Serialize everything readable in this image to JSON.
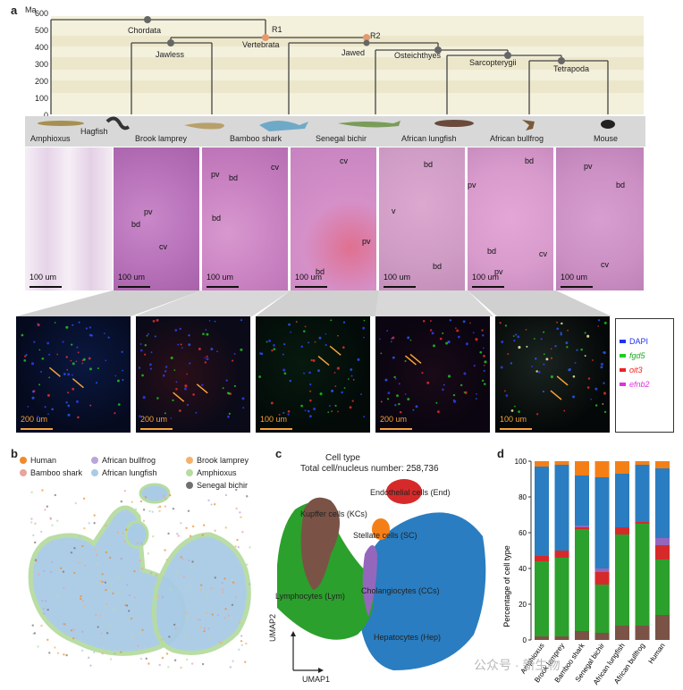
{
  "panel_a": {
    "letter": "a",
    "axis_unit": "Ma",
    "ticks": [
      "600",
      "500",
      "400",
      "300",
      "200",
      "100",
      "0"
    ],
    "tree_nodes": [
      {
        "label": "Chordata"
      },
      {
        "label": "Jawless"
      },
      {
        "label": "Vertebrata"
      },
      {
        "label": "R1"
      },
      {
        "label": "R2"
      },
      {
        "label": "Jawed"
      },
      {
        "label": "Osteichthyes"
      },
      {
        "label": "Sarcopterygii"
      },
      {
        "label": "Tetrapoda"
      }
    ],
    "species": [
      "Amphioxus",
      "Hagfish",
      "Brook lamprey",
      "Bamboo shark",
      "Senegal bichir",
      "African lungfish",
      "African bullfrog",
      "Mouse"
    ],
    "histology": [
      {
        "species": "Amphioxus",
        "labels": [],
        "scale": "100 um"
      },
      {
        "species": "Brook lamprey",
        "labels": [
          "pv",
          "bd",
          "cv"
        ],
        "scale": "100 um"
      },
      {
        "species": "Bamboo shark",
        "labels": [
          "pv",
          "bd",
          "cv",
          "bd"
        ],
        "scale": "100 um"
      },
      {
        "species": "Senegal bichir",
        "labels": [
          "cv",
          "pv",
          "bd"
        ],
        "scale": "100 um"
      },
      {
        "species": "African lungfish",
        "labels": [
          "bd",
          "v",
          "bd"
        ],
        "scale": "100 um"
      },
      {
        "species": "African bullfrog",
        "labels": [
          "bd",
          "pv",
          "bd",
          "pv",
          "cv"
        ],
        "scale": "100 um"
      },
      {
        "species": "Mouse",
        "labels": [
          "pv",
          "bd",
          "cv"
        ],
        "scale": "100 um"
      }
    ],
    "fluorescence_scales": [
      "200 um",
      "200 um",
      "100 um",
      "200 um",
      "100 um"
    ],
    "legend": [
      {
        "label": "DAPI",
        "color": "#2233ee"
      },
      {
        "label": "fgd5",
        "color": "#22cc22"
      },
      {
        "label": "oit3",
        "color": "#ee2222"
      },
      {
        "label": "efnb2",
        "color": "#dd33dd"
      }
    ]
  },
  "panel_b": {
    "letter": "b",
    "legend": [
      {
        "label": "Human",
        "color": "#f08a2a"
      },
      {
        "label": "African bullfrog",
        "color": "#b9a6d8"
      },
      {
        "label": "Brook lamprey",
        "color": "#f5b26b"
      },
      {
        "label": "Bamboo shark",
        "color": "#e9a59a"
      },
      {
        "label": "African lungfish",
        "color": "#a9cbe6"
      },
      {
        "label": "Amphioxus",
        "color": "#b6dca0"
      },
      {
        "label": "Senegal bichir",
        "color": "#707070"
      }
    ]
  },
  "panel_c": {
    "letter": "c",
    "title": "Cell type",
    "subtitle": "Total cell/nucleus number: 258,736",
    "clusters": [
      {
        "label": "Endothelial cells (End)",
        "color": "#d62a2a"
      },
      {
        "label": "Kupffer cells (KCs)",
        "color": "#7a5346"
      },
      {
        "label": "Stellate cells (SC)",
        "color": "#f57f17"
      },
      {
        "label": "Lymphocytes (Lym)",
        "color": "#2ca02c"
      },
      {
        "label": "Cholangiocytes (CCs)",
        "color": "#9467bd"
      },
      {
        "label": "Hepatocytes (Hep)",
        "color": "#2a7dc0"
      }
    ],
    "axis_x": "UMAP1",
    "axis_y": "UMAP2"
  },
  "panel_d": {
    "letter": "d"
  },
  "chart_data": {
    "type": "bar",
    "stacked": true,
    "categories": [
      "Amphioxus",
      "Brook lamprey",
      "Bamboo shark",
      "Senegal bichir",
      "African lungfish",
      "African bullfrog",
      "Human"
    ],
    "series": [
      {
        "color": "#7a5346",
        "values": [
          2,
          2,
          5,
          4,
          8,
          8,
          14
        ]
      },
      {
        "color": "#2ca02c",
        "values": [
          42,
          44,
          57,
          27,
          51,
          57,
          31
        ]
      },
      {
        "color": "#d62a2a",
        "values": [
          3,
          4,
          1,
          7,
          4,
          1,
          8
        ]
      },
      {
        "color": "#9467bd",
        "values": [
          0,
          0,
          1,
          2,
          0,
          0,
          4
        ]
      },
      {
        "color": "#2a7dc0",
        "values": [
          50,
          48,
          28,
          51,
          30,
          32,
          39
        ]
      },
      {
        "color": "#f57f17",
        "values": [
          3,
          2,
          8,
          9,
          7,
          2,
          4
        ]
      }
    ],
    "ylabel": "Percentage of cell type",
    "ylim": [
      0,
      100
    ],
    "yticks": [
      "0",
      "20",
      "40",
      "60",
      "80",
      "100"
    ]
  },
  "watermark": "公众号 · 新生物"
}
